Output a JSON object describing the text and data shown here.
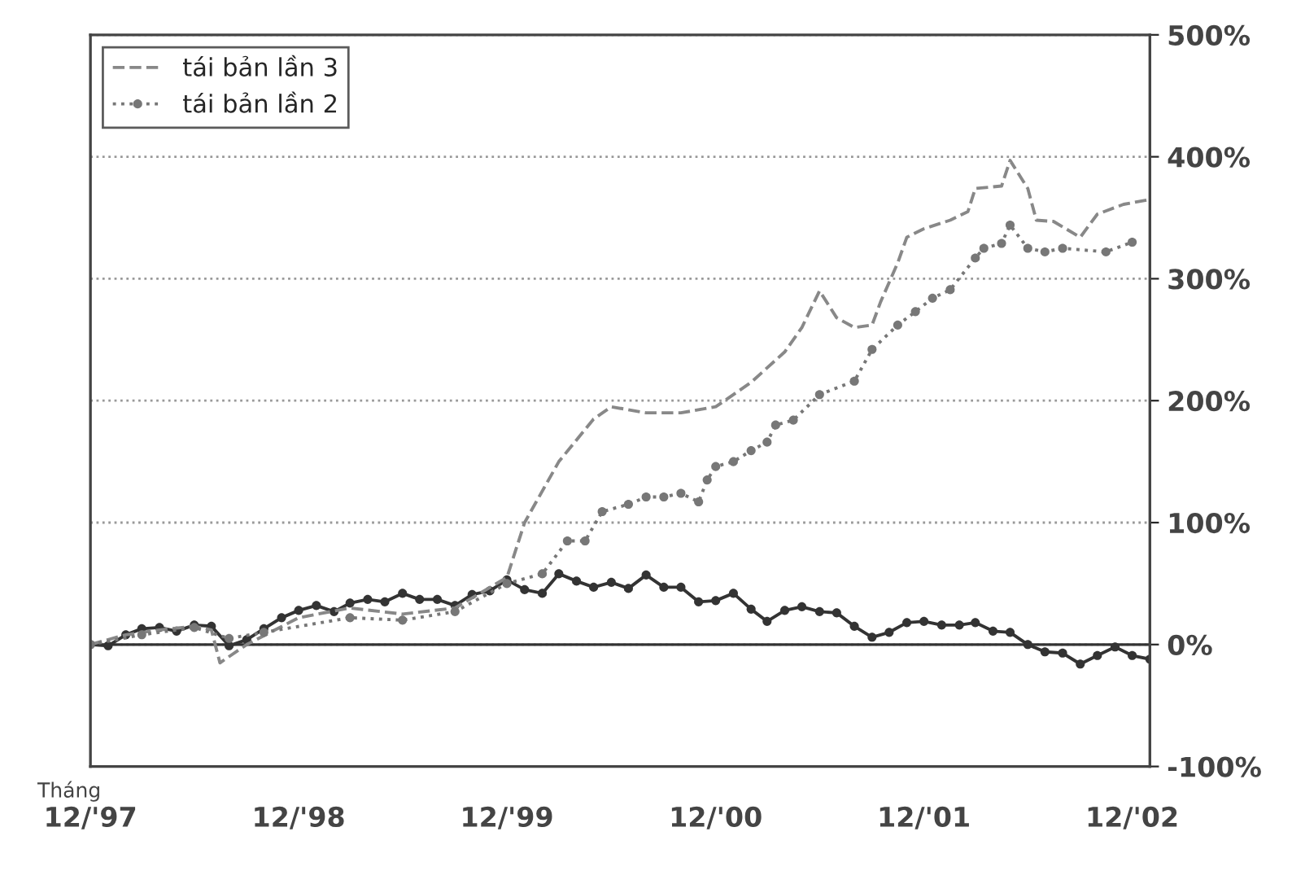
{
  "chart_data": {
    "type": "line",
    "xlabel": "Tháng",
    "xlim": [
      "1997-12",
      "2003-01"
    ],
    "xticks": [
      {
        "value": "1997-12",
        "label": "12/'97"
      },
      {
        "value": "1998-12",
        "label": "12/'98"
      },
      {
        "value": "1999-12",
        "label": "12/'99"
      },
      {
        "value": "2000-12",
        "label": "12/'00"
      },
      {
        "value": "2001-12",
        "label": "12/'01"
      },
      {
        "value": "2002-12",
        "label": "12/'02"
      }
    ],
    "ylim": [
      -100,
      500
    ],
    "yticks": [
      {
        "value": -100,
        "label": "-100%"
      },
      {
        "value": 0,
        "label": "0%"
      },
      {
        "value": 100,
        "label": "100%"
      },
      {
        "value": 200,
        "label": "200%"
      },
      {
        "value": 300,
        "label": "300%"
      },
      {
        "value": 400,
        "label": "400%"
      },
      {
        "value": 500,
        "label": "500%"
      }
    ],
    "grid": "y",
    "legend": "top left",
    "ref_lines": [
      {
        "axis": "y",
        "value": 0,
        "color": "#333333",
        "line_style": "solid"
      }
    ],
    "series": [
      {
        "color": "#333333",
        "marker": "circle",
        "line_style": "solid",
        "x": [
          "1997-12",
          "1998-01",
          "1998-02",
          "1998-03",
          "1998-04",
          "1998-05",
          "1998-06",
          "1998-07",
          "1998-08",
          "1998-09",
          "1998-10",
          "1998-11",
          "1998-12",
          "1999-01",
          "1999-02",
          "1999-03",
          "1999-04",
          "1999-05",
          "1999-06",
          "1999-07",
          "1999-08",
          "1999-09",
          "1999-10",
          "1999-11",
          "1999-12",
          "2000-01",
          "2000-02",
          "2000-03",
          "2000-04",
          "2000-05",
          "2000-06",
          "2000-07",
          "2000-08",
          "2000-09",
          "2000-10",
          "2000-11",
          "2000-12",
          "2001-01",
          "2001-02",
          "2001-03",
          "2001-04",
          "2001-05",
          "2001-06",
          "2001-07",
          "2001-08",
          "2001-09",
          "2001-10",
          "2001-11",
          "2001-12",
          "2002-01",
          "2002-02",
          "2002-03",
          "2002-04",
          "2002-05",
          "2002-06",
          "2002-07",
          "2002-08",
          "2002-09",
          "2002-10",
          "2002-11",
          "2002-12",
          "2003-01"
        ],
        "values": [
          0,
          -1,
          8,
          13,
          14,
          11,
          16,
          15,
          -1,
          4,
          13,
          22,
          28,
          32,
          27,
          34,
          37,
          35,
          42,
          37,
          37,
          32,
          41,
          44,
          53,
          45,
          42,
          58,
          52,
          47,
          51,
          46,
          57,
          47,
          47,
          35,
          36,
          42,
          29,
          19,
          28,
          31,
          27,
          26,
          15,
          6,
          10,
          18,
          19,
          16,
          16,
          18,
          11,
          10,
          0,
          -6,
          -7,
          -16,
          -9,
          -2,
          -9,
          -12
        ]
      },
      {
        "name": "tái bản lần 3",
        "color": "#888888",
        "marker": "none",
        "line_style": "dashed",
        "x": [
          "1997-12",
          "1998-02",
          "1998-04",
          "1998-06",
          "1998-07",
          "1998-07-16",
          "1998-09",
          "1998-12",
          "1999-03",
          "1999-06",
          "1999-09",
          "1999-12",
          "2000-01",
          "2000-03",
          "2000-05",
          "2000-06",
          "2000-08",
          "2000-10",
          "2000-12",
          "2001-02",
          "2001-04",
          "2001-05",
          "2001-06",
          "2001-07",
          "2001-08",
          "2001-09",
          "2001-09-16",
          "2001-10-16",
          "2001-11",
          "2001-12",
          "2002-01-16",
          "2002-02-16",
          "2002-03",
          "2002-04-16",
          "2002-05",
          "2002-06",
          "2002-06-16",
          "2002-07-16",
          "2002-09",
          "2002-10",
          "2002-11-16",
          "2003-01"
        ],
        "values": [
          0,
          8,
          12,
          15,
          12,
          -15,
          0,
          22,
          30,
          25,
          30,
          55,
          100,
          150,
          185,
          195,
          190,
          190,
          195,
          215,
          240,
          260,
          290,
          268,
          260,
          262,
          281,
          313,
          334,
          341,
          348,
          355,
          374,
          376,
          397,
          374,
          348,
          347,
          334,
          353,
          361,
          365
        ]
      },
      {
        "name": "tái bản lần 2",
        "color": "#777777",
        "marker": "circle",
        "line_style": "dotted",
        "x": [
          "1997-12",
          "1998-03",
          "1998-06",
          "1998-08",
          "1998-10",
          "1999-03",
          "1999-06",
          "1999-09",
          "1999-12",
          "2000-02",
          "2000-03-16",
          "2000-04-16",
          "2000-05-16",
          "2000-07",
          "2000-08",
          "2000-09",
          "2000-10",
          "2000-11",
          "2000-11-16",
          "2000-12",
          "2001-01",
          "2001-02",
          "2001-03",
          "2001-03-16",
          "2001-04-16",
          "2001-06",
          "2001-08",
          "2001-09",
          "2001-10-16",
          "2001-11-16",
          "2001-12-16",
          "2002-01-16",
          "2002-03",
          "2002-03-16",
          "2002-04-16",
          "2002-05",
          "2002-06",
          "2002-07",
          "2002-08",
          "2002-10-16",
          "2002-12"
        ],
        "values": [
          0,
          8,
          14,
          5,
          10,
          22,
          20,
          27,
          50,
          58,
          85,
          85,
          109,
          115,
          121,
          121,
          124,
          117,
          135,
          146,
          150,
          159,
          166,
          180,
          184,
          205,
          216,
          242,
          262,
          273,
          284,
          291,
          317,
          325,
          329,
          344,
          325,
          322,
          325,
          322,
          330
        ]
      }
    ]
  }
}
